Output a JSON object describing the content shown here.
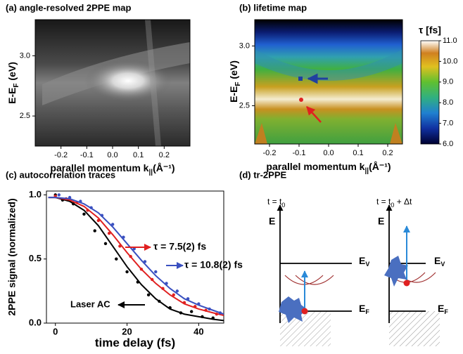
{
  "chart_data": [
    {
      "type": "heatmap",
      "title": "(a) angle-resolved 2PPE map",
      "xlabel": [
        "parallel momentum k",
        "||",
        "(Å⁻¹)"
      ],
      "ylabel": [
        "E-E",
        "F",
        " (eV)"
      ],
      "xlim": [
        -0.3,
        0.3
      ],
      "ylim": [
        2.25,
        3.3
      ],
      "xticks": [
        -0.2,
        -0.1,
        {
          "value": 0,
          "label": "0.0"
        },
        0.1,
        0.2
      ],
      "yticks": [
        2.5,
        {
          "value": 3,
          "label": "3.0"
        }
      ],
      "colormap": "gray"
    },
    {
      "type": "heatmap",
      "title": "(b) lifetime map",
      "xlabel": [
        "parallel momentum k",
        "||",
        "(Å⁻¹)"
      ],
      "ylabel": [
        "E-E",
        "F",
        " (eV)"
      ],
      "xlim": [
        -0.25,
        0.25
      ],
      "ylim": [
        2.18,
        3.22
      ],
      "xticks": [
        -0.2,
        -0.1,
        {
          "value": 0,
          "label": "0.0"
        },
        0.1,
        0.2
      ],
      "yticks": [
        2.5,
        {
          "value": 3,
          "label": "3.0"
        }
      ],
      "colormap": "jet",
      "colorbar": {
        "label": "τ [fs]",
        "lim": [
          6,
          11
        ],
        "ticks": [
          {
            "value": 6,
            "label": "6.0"
          },
          {
            "value": 7,
            "label": "7.0"
          },
          {
            "value": 8,
            "label": "8.0"
          },
          {
            "value": 9,
            "label": "9.0"
          },
          {
            "value": 10,
            "label": "10.0"
          },
          {
            "value": 11,
            "label": "11.0"
          }
        ]
      }
    },
    {
      "type": "scatter-line",
      "title": "(c) autocorrelation traces",
      "xlabel": "time delay (fs)",
      "ylabel": "2PPE signal (normalized)",
      "xlim": [
        -2.5,
        47
      ],
      "ylim": [
        0,
        1.03
      ],
      "xticks": [
        0,
        20,
        40
      ],
      "yticks": [
        {
          "value": 0,
          "label": "0.0"
        },
        {
          "value": 0.5,
          "label": "0.5"
        },
        {
          "value": 1,
          "label": "1.0"
        }
      ],
      "fit_x": [
        -2,
        0,
        4,
        8,
        12,
        16,
        20,
        24,
        28,
        32,
        36,
        40,
        44,
        47
      ],
      "series": [
        {
          "name": "Laser AC",
          "color": "#000000",
          "x": [
            0,
            2,
            5,
            8,
            11,
            14,
            17,
            20,
            23,
            26,
            29,
            32,
            35,
            38,
            41,
            44
          ],
          "values": [
            1.0,
            0.96,
            0.93,
            0.85,
            0.72,
            0.62,
            0.5,
            0.4,
            0.32,
            0.22,
            0.17,
            0.12,
            0.08,
            0.09,
            0.05,
            0.04
          ],
          "fit": [
            0.98,
            0.98,
            0.95,
            0.88,
            0.76,
            0.6,
            0.44,
            0.3,
            0.19,
            0.11,
            0.07,
            0.05,
            0.03,
            0.02
          ]
        },
        {
          "name": "τ = 7.5(2) fs",
          "color": "#e02020",
          "x": [
            0,
            3,
            6,
            9,
            12,
            15,
            18,
            21,
            24,
            27,
            30,
            33,
            36,
            39,
            42,
            45
          ],
          "values": [
            0.99,
            0.97,
            0.94,
            0.88,
            0.8,
            0.7,
            0.6,
            0.52,
            0.42,
            0.34,
            0.27,
            0.22,
            0.16,
            0.13,
            0.1,
            0.07
          ],
          "fit": [
            0.98,
            0.98,
            0.96,
            0.91,
            0.82,
            0.69,
            0.55,
            0.42,
            0.31,
            0.22,
            0.15,
            0.11,
            0.08,
            0.06
          ]
        },
        {
          "name": "τ = 10.8(2) fs",
          "color": "#3a50c0",
          "x": [
            1,
            4,
            7,
            10,
            13,
            16,
            19,
            22,
            25,
            28,
            31,
            34,
            37,
            40,
            43,
            46
          ],
          "values": [
            1.0,
            0.98,
            0.95,
            0.9,
            0.84,
            0.77,
            0.67,
            0.58,
            0.48,
            0.4,
            0.31,
            0.25,
            0.19,
            0.15,
            0.11,
            0.08
          ],
          "fit": [
            0.98,
            0.98,
            0.97,
            0.93,
            0.86,
            0.75,
            0.62,
            0.49,
            0.37,
            0.27,
            0.19,
            0.14,
            0.1,
            0.07
          ]
        }
      ]
    }
  ],
  "diagram": {
    "title": "(d) tr-2PPE",
    "left": {
      "time": [
        "t = t",
        "0"
      ],
      "energy": "E",
      "levels": [
        [
          "E",
          "V"
        ],
        [
          "E",
          "F"
        ]
      ]
    },
    "right": {
      "time": [
        "t = t",
        "0",
        " + Δt"
      ],
      "energy": "E",
      "levels": [
        [
          "E",
          "V"
        ],
        [
          "E",
          "F"
        ]
      ]
    }
  }
}
